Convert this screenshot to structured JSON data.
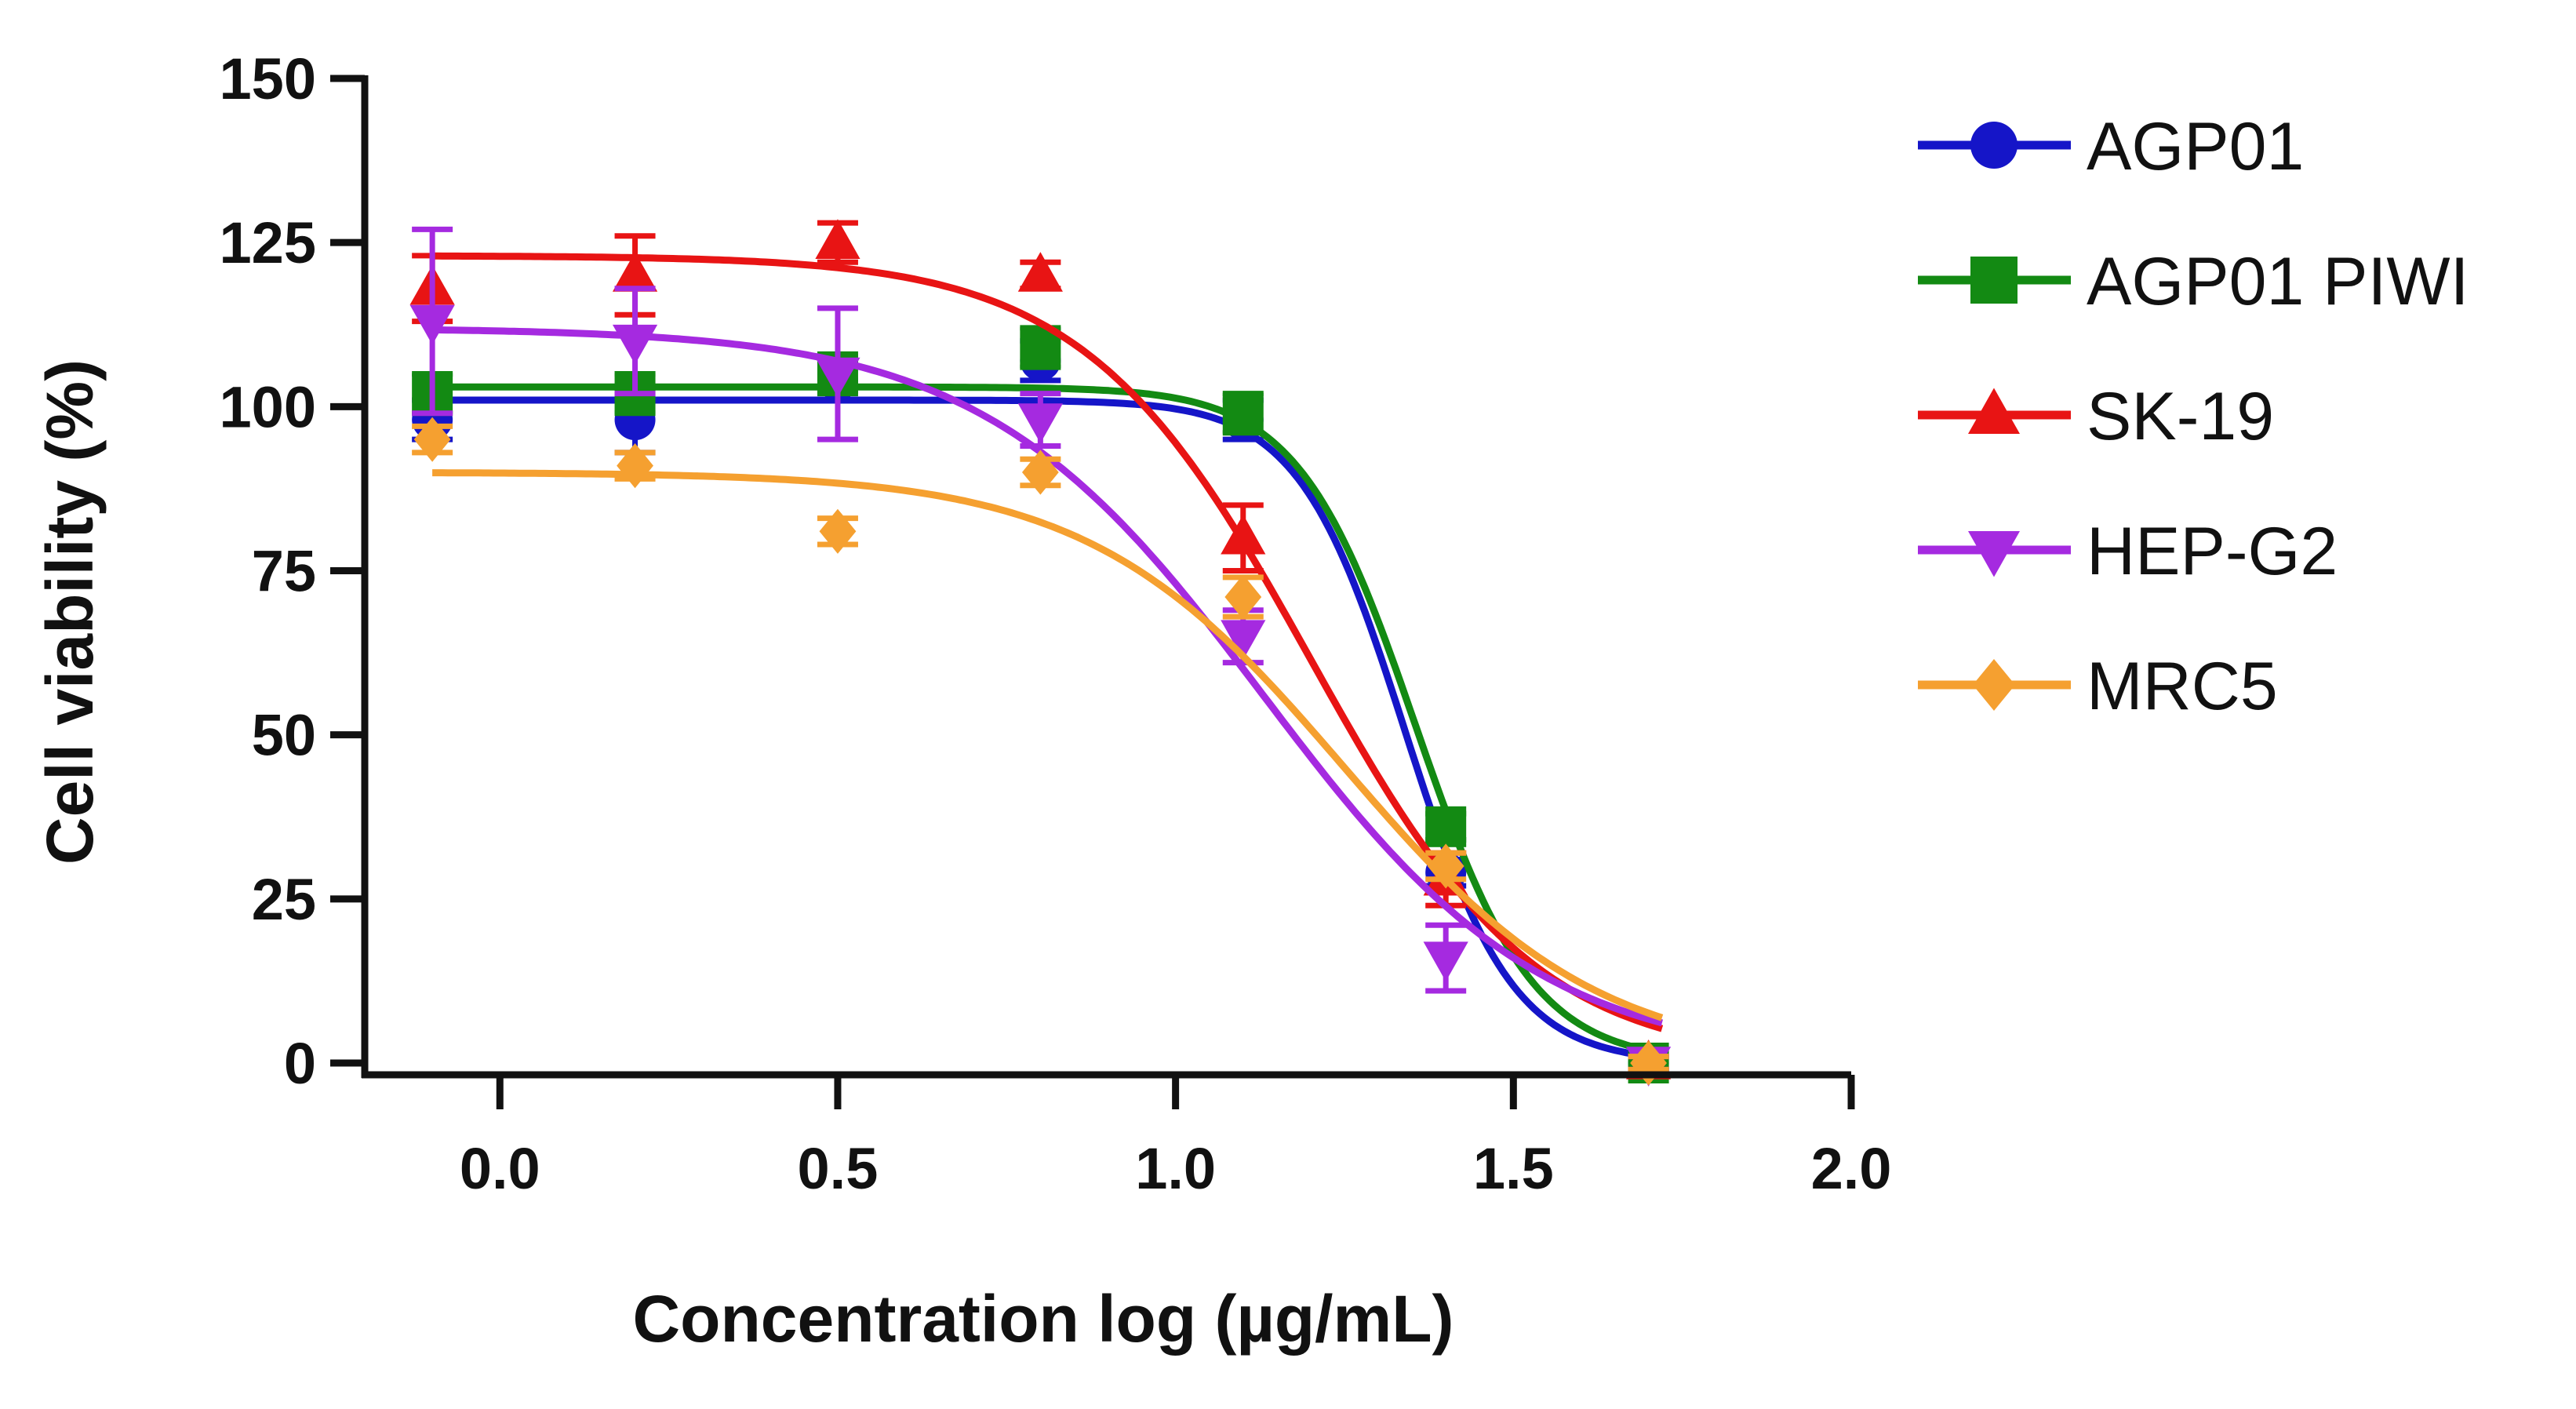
{
  "chart_data": {
    "type": "scatter",
    "title": "",
    "xlabel": "Concentration log (µg/mL)",
    "ylabel": "Cell viability (%)",
    "xlim": [
      -0.2,
      2.0
    ],
    "ylim": [
      0,
      150
    ],
    "xticks": [
      "0.0",
      "0.5",
      "1.0",
      "1.5",
      "2.0"
    ],
    "yticks": [
      "0",
      "25",
      "50",
      "75",
      "100",
      "125",
      "150"
    ],
    "grid": false,
    "legend_position": "right",
    "x": [
      -0.1,
      0.2,
      0.5,
      0.8,
      1.1,
      1.4,
      1.7
    ],
    "series": [
      {
        "name": "AGP01",
        "color": "#1515c8",
        "marker": "circle",
        "y": [
          98,
          98,
          104,
          107,
          98,
          29,
          0
        ],
        "err": [
          3,
          5,
          3,
          3,
          3,
          2,
          1
        ],
        "fit": {
          "top": 101,
          "bottom": 0,
          "logec50": 1.34,
          "hill": 5.5
        }
      },
      {
        "name": "AGP01 PIWI",
        "color": "#138a13",
        "marker": "square",
        "y": [
          102,
          102,
          105,
          109,
          99,
          36,
          0
        ],
        "err": [
          3,
          3,
          3,
          3,
          3,
          2,
          1
        ],
        "fit": {
          "top": 103,
          "bottom": 0,
          "logec50": 1.355,
          "hill": 5.0
        }
      },
      {
        "name": "SK-19",
        "color": "#e81414",
        "marker": "triangle-up",
        "y": [
          118,
          120,
          125,
          120,
          80,
          28,
          0
        ],
        "err": [
          5,
          6,
          3,
          2,
          5,
          4,
          1
        ],
        "fit": {
          "top": 123,
          "bottom": 0,
          "logec50": 1.2,
          "hill": 2.6
        }
      },
      {
        "name": "HEP-G2",
        "color": "#a52ae0",
        "marker": "triangle-down",
        "y": [
          113,
          110,
          105,
          98,
          65,
          16,
          0
        ],
        "err": [
          14,
          8,
          10,
          4,
          4,
          5,
          1
        ],
        "fit": {
          "top": 112,
          "bottom": 0,
          "logec50": 1.13,
          "hill": 2.1
        }
      },
      {
        "name": "MRC5",
        "color": "#f5a030",
        "marker": "diamond",
        "y": [
          95,
          91,
          81,
          90,
          71,
          30,
          0
        ],
        "err": [
          2,
          2,
          2,
          2,
          3,
          2,
          1
        ],
        "fit": {
          "top": 90,
          "bottom": 0,
          "logec50": 1.25,
          "hill": 2.3
        }
      }
    ]
  }
}
